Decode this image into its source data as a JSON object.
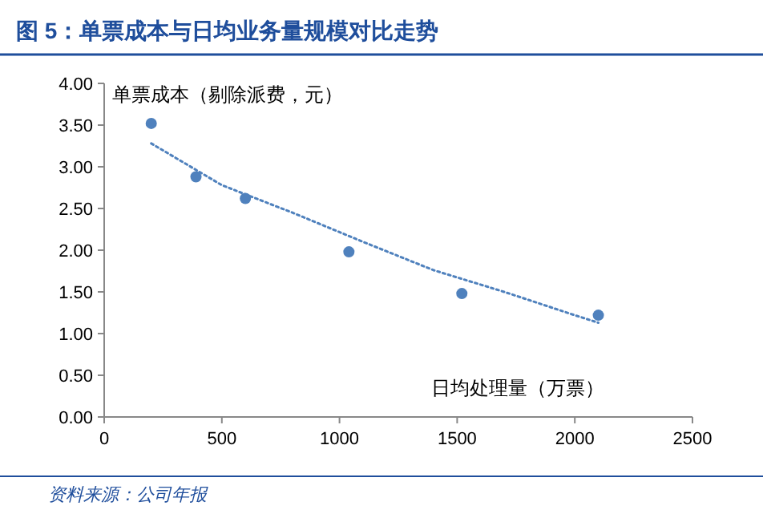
{
  "chart_data": {
    "type": "scatter",
    "title": "图 5：单票成本与日均业务量规模对比走势",
    "ylabel": "单票成本（剔除派费，元）",
    "xlabel": "日均处理量（万票）",
    "series": [
      {
        "color": "#4f81bd",
        "x": [
          200,
          390,
          600,
          1040,
          1520,
          2100
        ],
        "values": [
          3.52,
          2.88,
          2.62,
          1.98,
          1.48,
          1.22
        ],
        "marker": "circle"
      },
      {
        "type": "line",
        "color": "#4f81bd",
        "line_style": "dotted",
        "x": [
          200,
          500,
          800,
          1100,
          1400,
          1700,
          2000,
          2100
        ],
        "values": [
          3.28,
          2.78,
          2.45,
          2.1,
          1.76,
          1.5,
          1.22,
          1.13
        ]
      }
    ],
    "xlim": [
      0,
      2500
    ],
    "xticks": [
      0,
      500,
      1000,
      1500,
      2000,
      2500
    ],
    "ylim": [
      0,
      4
    ],
    "yticks": [
      {
        "value": 0,
        "label": "0.00"
      },
      {
        "value": 0.5,
        "label": "0.50"
      },
      {
        "value": 1,
        "label": "1.00"
      },
      {
        "value": 1.5,
        "label": "1.50"
      },
      {
        "value": 2,
        "label": "2.00"
      },
      {
        "value": 2.5,
        "label": "2.50"
      },
      {
        "value": 3,
        "label": "3.00"
      },
      {
        "value": 3.5,
        "label": "3.50"
      },
      {
        "value": 4,
        "label": "4.00"
      }
    ],
    "grid": false,
    "annotations": [
      "资料来源：公司年报"
    ]
  }
}
